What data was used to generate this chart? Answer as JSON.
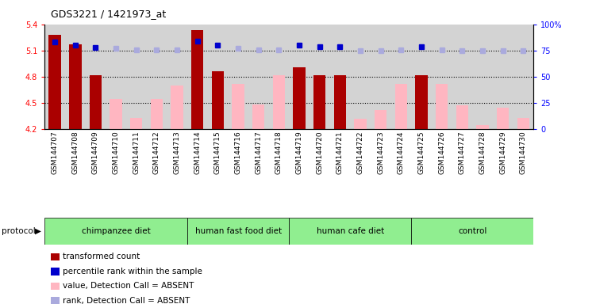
{
  "title": "GDS3221 / 1421973_at",
  "samples": [
    "GSM144707",
    "GSM144708",
    "GSM144709",
    "GSM144710",
    "GSM144711",
    "GSM144712",
    "GSM144713",
    "GSM144714",
    "GSM144715",
    "GSM144716",
    "GSM144717",
    "GSM144718",
    "GSM144719",
    "GSM144720",
    "GSM144721",
    "GSM144722",
    "GSM144723",
    "GSM144724",
    "GSM144725",
    "GSM144726",
    "GSM144727",
    "GSM144728",
    "GSM144729",
    "GSM144730"
  ],
  "transformed_count": [
    5.28,
    5.17,
    4.82,
    null,
    null,
    null,
    null,
    5.33,
    4.86,
    null,
    null,
    null,
    4.91,
    4.82,
    4.82,
    null,
    null,
    null,
    4.82,
    null,
    null,
    null,
    null,
    null
  ],
  "absent_value": [
    null,
    null,
    null,
    4.55,
    4.33,
    4.55,
    4.7,
    null,
    null,
    4.72,
    4.48,
    4.82,
    null,
    null,
    null,
    4.32,
    4.42,
    4.72,
    null,
    4.72,
    4.47,
    4.25,
    4.45,
    4.33
  ],
  "percentile_rank_present": [
    83,
    80,
    78,
    null,
    null,
    null,
    null,
    84,
    80,
    null,
    null,
    null,
    80,
    79,
    79,
    null,
    null,
    null,
    79,
    null,
    null,
    null,
    null,
    null
  ],
  "percentile_rank_absent": [
    null,
    null,
    null,
    77,
    76,
    76,
    76,
    null,
    null,
    77,
    76,
    76,
    null,
    null,
    null,
    75,
    75,
    76,
    null,
    76,
    75,
    75,
    75,
    75
  ],
  "groups": [
    {
      "label": "chimpanzee diet",
      "start": 0,
      "end": 7,
      "color": "#90EE90"
    },
    {
      "label": "human fast food diet",
      "start": 7,
      "end": 12,
      "color": "#90EE90"
    },
    {
      "label": "human cafe diet",
      "start": 12,
      "end": 18,
      "color": "#90EE90"
    },
    {
      "label": "control",
      "start": 18,
      "end": 24,
      "color": "#90EE90"
    }
  ],
  "ylim_left": [
    4.2,
    5.4
  ],
  "ylim_right": [
    0,
    100
  ],
  "yticks_left": [
    4.2,
    4.5,
    4.8,
    5.1,
    5.4
  ],
  "yticks_right": [
    0,
    25,
    50,
    75,
    100
  ],
  "ytick_right_labels": [
    "0",
    "25",
    "50",
    "75",
    "100%"
  ],
  "hlines": [
    5.1,
    4.8,
    4.5
  ],
  "bar_color_present": "#AA0000",
  "bar_color_absent": "#FFB6C1",
  "dot_color_present": "#0000CC",
  "dot_color_absent": "#AAAADD",
  "background_color": "#D3D3D3",
  "bar_width": 0.6,
  "dot_size": 4,
  "legend_items": [
    {
      "color": "#AA0000",
      "label": "transformed count"
    },
    {
      "color": "#0000CC",
      "label": "percentile rank within the sample"
    },
    {
      "color": "#FFB6C1",
      "label": "value, Detection Call = ABSENT"
    },
    {
      "color": "#AAAADD",
      "label": "rank, Detection Call = ABSENT"
    }
  ]
}
